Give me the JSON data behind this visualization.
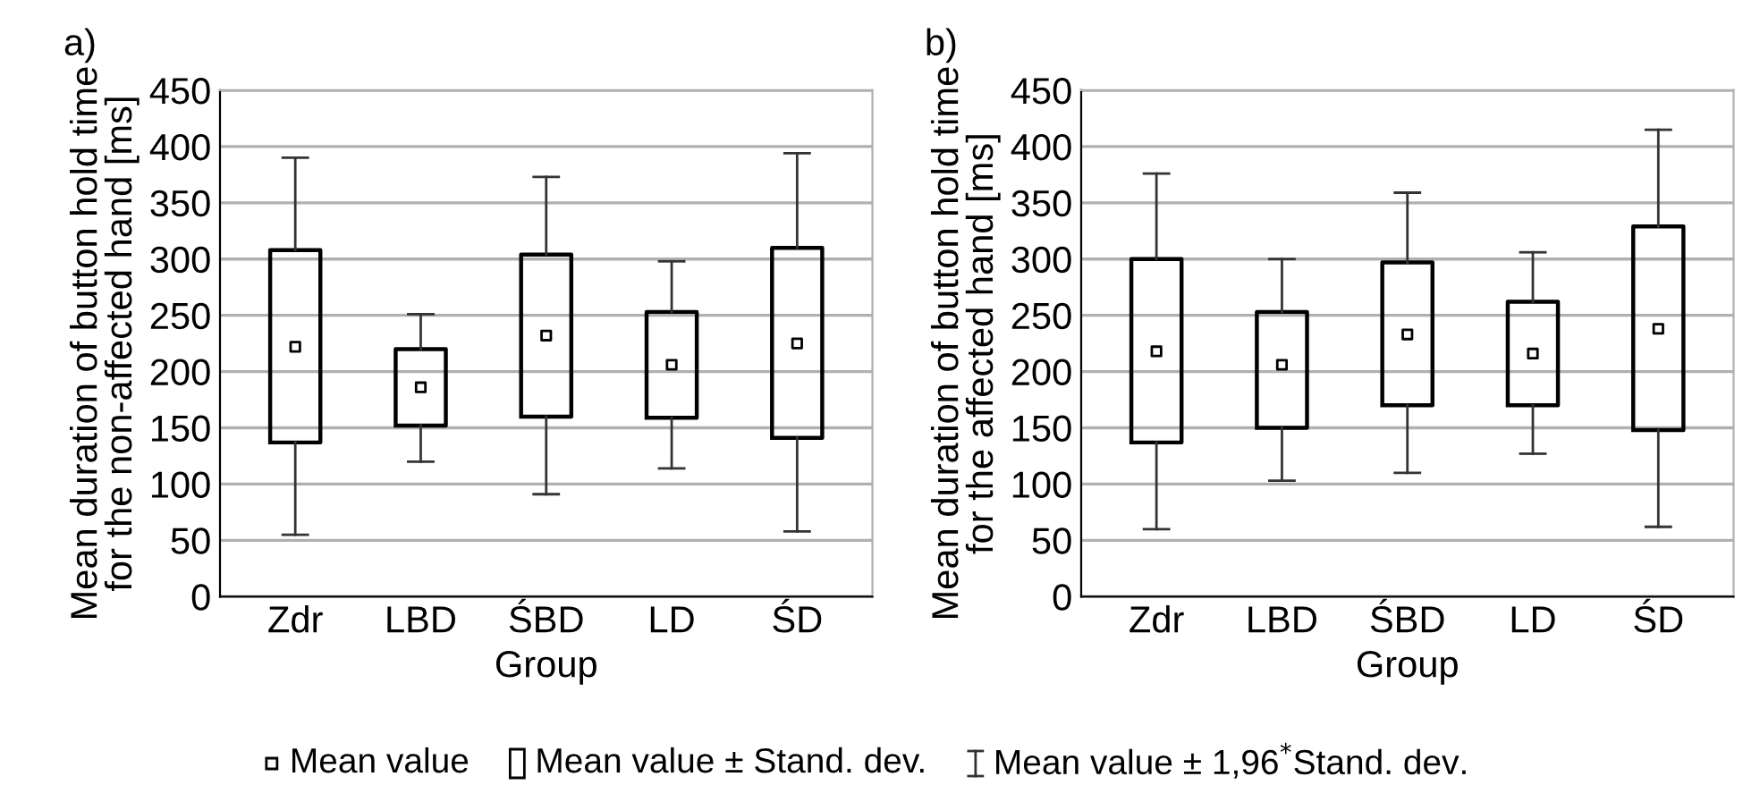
{
  "chart_data": [
    {
      "type": "box",
      "title": "a)",
      "xlabel": "Group",
      "ylabel": "Mean duration of button hold time\nfor the non-affected hand [ms]",
      "categories": [
        "Zdr",
        "LBD",
        "ŚBD",
        "LD",
        "ŚD"
      ],
      "boxes": [
        {
          "low": 55,
          "q1": 137,
          "median": 222,
          "q3": 308,
          "high": 390
        },
        {
          "low": 120,
          "q1": 152,
          "median": 186,
          "q3": 220,
          "high": 251
        },
        {
          "low": 91,
          "q1": 160,
          "median": 232,
          "q3": 304,
          "high": 373
        },
        {
          "low": 114,
          "q1": 159,
          "median": 206,
          "q3": 253,
          "high": 298
        },
        {
          "low": 58,
          "q1": 141,
          "median": 225,
          "q3": 310,
          "high": 394
        }
      ],
      "ylim": [
        0,
        450
      ],
      "yticks": [
        0,
        50,
        100,
        150,
        200,
        250,
        300,
        350,
        400,
        450
      ],
      "grid": "y",
      "marker": "square"
    },
    {
      "type": "box",
      "title": "b)",
      "xlabel": "Group",
      "ylabel": "Mean duration of button hold time\nfor the affected hand [ms]",
      "categories": [
        "Zdr",
        "LBD",
        "ŚBD",
        "LD",
        "ŚD"
      ],
      "boxes": [
        {
          "low": 60,
          "q1": 137,
          "median": 218,
          "q3": 300,
          "high": 376
        },
        {
          "low": 103,
          "q1": 150,
          "median": 206,
          "q3": 253,
          "high": 300
        },
        {
          "low": 110,
          "q1": 170,
          "median": 233,
          "q3": 297,
          "high": 359
        },
        {
          "low": 127,
          "q1": 170,
          "median": 216,
          "q3": 262,
          "high": 306
        },
        {
          "low": 62,
          "q1": 148,
          "median": 238,
          "q3": 329,
          "high": 415
        }
      ],
      "ylim": [
        0,
        450
      ],
      "yticks": [
        0,
        50,
        100,
        150,
        200,
        250,
        300,
        350,
        400,
        450
      ],
      "grid": "y",
      "marker": "square",
      "annotations": [
        "Mean value",
        "Mean value ± Stand. dev.",
        "Mean value ± 1,96$^{*}$Stand. dev."
      ]
    }
  ]
}
